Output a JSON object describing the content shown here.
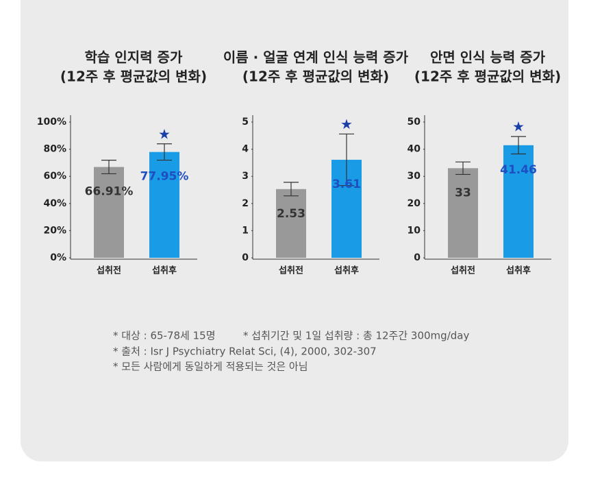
{
  "chart_data": [
    {
      "type": "bar",
      "title": "학습 인지력 증가",
      "subtitle": "(12주 후 평균값의 변화)",
      "categories": [
        "섭취전",
        "섭취후"
      ],
      "values": [
        66.91,
        77.95
      ],
      "value_labels": [
        "66.91%",
        "77.95%"
      ],
      "errors": [
        5,
        6
      ],
      "colors": [
        "#999999",
        "#1a9be6"
      ],
      "label_colors": [
        "#333333",
        "#1e4fc2"
      ],
      "annotation": "★",
      "annotation_color": "#1a3fa8",
      "ylim": [
        0,
        100
      ],
      "yticks": [
        {
          "value": 0,
          "label": "0%"
        },
        {
          "value": 20,
          "label": "20%"
        },
        {
          "value": 40,
          "label": "40%"
        },
        {
          "value": 60,
          "label": "60%"
        },
        {
          "value": 80,
          "label": "80%"
        },
        {
          "value": 100,
          "label": "100%"
        }
      ]
    },
    {
      "type": "bar",
      "title": "이름 · 얼굴 연계 인식 능력 증가",
      "subtitle": "(12주 후 평균값의 변화)",
      "categories": [
        "섭취전",
        "섭취후"
      ],
      "values": [
        2.53,
        3.61
      ],
      "errors": [
        0.25,
        0.95
      ],
      "colors": [
        "#999999",
        "#1a9be6"
      ],
      "label_colors": [
        "#333333",
        "#1e4fc2"
      ],
      "annotation": "★",
      "annotation_color": "#1a3fa8",
      "ylim": [
        0,
        5
      ],
      "yticks": [
        0,
        1,
        2,
        3,
        4,
        5
      ]
    },
    {
      "type": "bar",
      "title": "안면 인식 능력 증가",
      "subtitle": "(12주 후 평균값의 변화)",
      "categories": [
        "섭취전",
        "섭취후"
      ],
      "values": [
        33,
        41.46
      ],
      "errors": [
        2.3,
        3.2
      ],
      "colors": [
        "#999999",
        "#1a9be6"
      ],
      "label_colors": [
        "#333333",
        "#1e4fc2"
      ],
      "annotation": "★",
      "annotation_color": "#1a3fa8",
      "ylim": [
        0,
        50
      ],
      "yticks": [
        0,
        10,
        20,
        30,
        40,
        50
      ]
    }
  ],
  "notes": [
    "* 대상 : 65-78세 15명",
    "* 섭취기간 및 1일 섭취량 : 총 12주간 300mg/day",
    "* 출처 : Isr J Psychiatry Relat Sci, (4), 2000, 302-307",
    "* 모든 사람에게 동일하게 적용되는 것은 아님"
  ]
}
